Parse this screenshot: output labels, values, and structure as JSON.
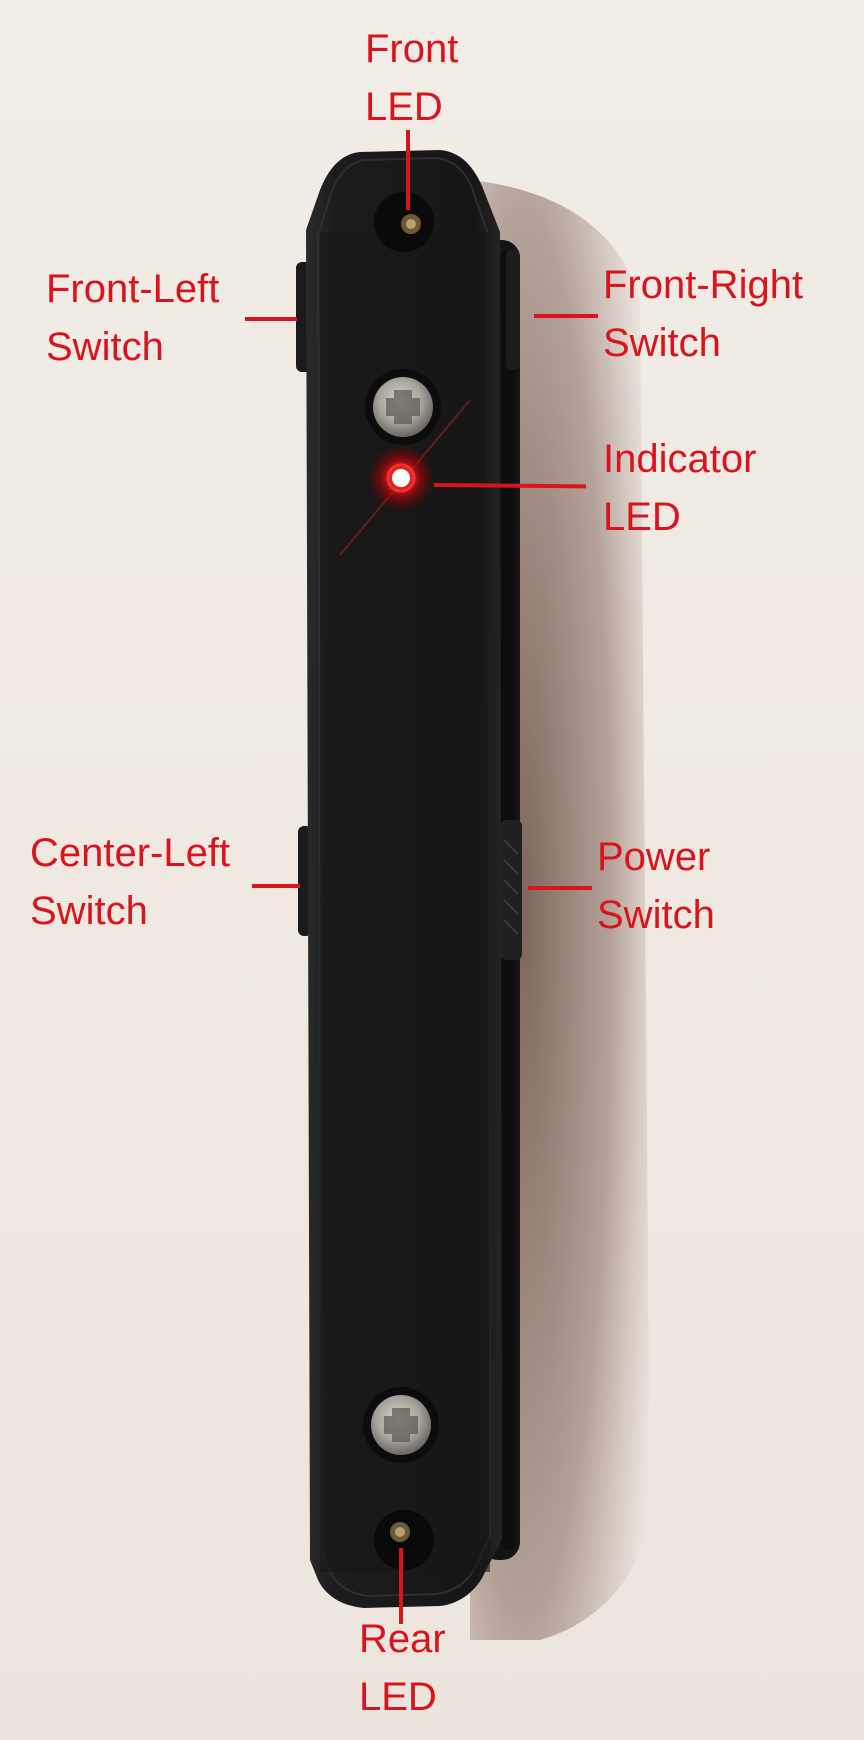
{
  "image": {
    "subject": "black-device-with-annotations",
    "background_color": "#efe9e2",
    "device_color": "#1a1a1a",
    "annotation_color": "#d9141c"
  },
  "annotations": {
    "front_led": {
      "line1": "Front",
      "line2": "LED"
    },
    "front_left_switch": {
      "line1": "Front-Left",
      "line2": "Switch"
    },
    "front_right_switch": {
      "line1": "Front-Right",
      "line2": "Switch"
    },
    "indicator_led": {
      "line1": "Indicator",
      "line2": "LED"
    },
    "center_left_switch": {
      "line1": "Center-Left",
      "line2": "Switch"
    },
    "power_switch": {
      "line1": "Power",
      "line2": "Switch"
    },
    "rear_led": {
      "line1": "Rear",
      "line2": "LED"
    }
  },
  "icons": [
    "front-led-icon",
    "rear-led-icon",
    "indicator-led-icon",
    "screw-icon"
  ]
}
